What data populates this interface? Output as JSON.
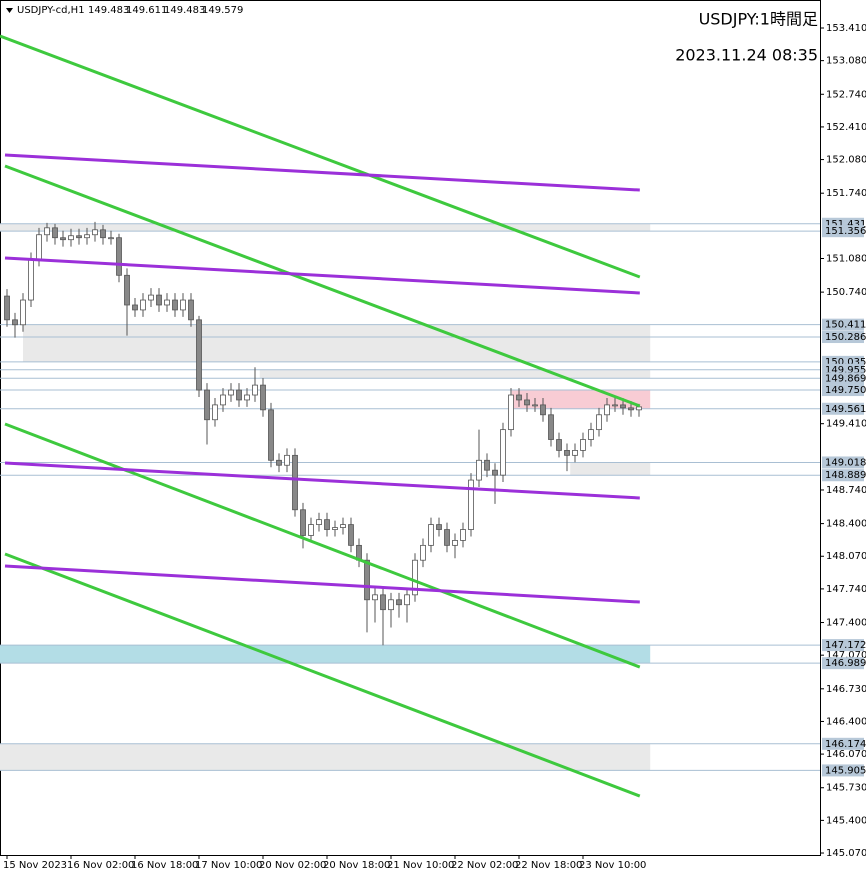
{
  "chart_data": {
    "type": "candlestick",
    "symbol": "USDJPY-cd,H1",
    "header_values": [
      149.483,
      149.611,
      149.483,
      149.579
    ],
    "title": "USDJPY:1時間足",
    "subtitle": "2023.11.24 08:35",
    "categories": [
      "15 Nov 2023",
      null,
      null,
      null,
      null,
      null,
      null,
      null,
      "16 Nov 02:00",
      null,
      null,
      null,
      null,
      null,
      null,
      null,
      "16 Nov 18:00",
      null,
      null,
      null,
      null,
      null,
      null,
      null,
      "17 Nov 10:00",
      null,
      null,
      null,
      null,
      null,
      null,
      null,
      "20 Nov 02:00",
      null,
      null,
      null,
      null,
      null,
      null,
      null,
      "20 Nov 18:00",
      null,
      null,
      null,
      null,
      null,
      null,
      null,
      "21 Nov 10:00",
      null,
      null,
      null,
      null,
      null,
      null,
      null,
      "22 Nov 02:00",
      null,
      null,
      null,
      null,
      null,
      null,
      null,
      "22 Nov 18:00",
      null,
      null,
      null,
      null,
      null,
      null,
      null,
      "23 Nov 10:00",
      null,
      null,
      null,
      null,
      null,
      null,
      null
    ],
    "open": [
      150.7,
      150.46,
      150.41,
      150.66,
      151.07,
      151.32,
      151.39,
      151.29,
      151.27,
      151.31,
      151.29,
      151.32,
      151.37,
      151.29,
      151.29,
      150.91,
      150.61,
      150.56,
      150.66,
      150.71,
      150.61,
      150.66,
      150.56,
      150.66,
      150.46,
      149.75,
      149.45,
      149.6,
      149.7,
      149.75,
      149.65,
      149.7,
      149.8,
      149.55,
      149.04,
      148.99,
      149.09,
      148.54,
      148.28,
      148.39,
      148.44,
      148.34,
      148.36,
      148.39,
      148.18,
      148.03,
      147.63,
      147.68,
      147.53,
      147.63,
      147.58,
      147.68,
      148.03,
      148.18,
      148.39,
      148.34,
      148.18,
      148.23,
      148.34,
      148.84,
      149.04,
      148.94,
      148.89,
      149.35,
      149.7,
      149.65,
      149.6,
      149.6,
      149.5,
      149.25,
      149.14,
      149.09,
      149.14,
      149.25,
      149.35,
      149.5,
      149.6,
      149.6,
      149.57,
      149.55
    ],
    "high": [
      150.77,
      150.53,
      150.73,
      151.14,
      151.39,
      151.44,
      151.43,
      151.36,
      151.38,
      151.38,
      151.39,
      151.45,
      151.42,
      151.36,
      151.33,
      150.98,
      150.68,
      150.73,
      150.78,
      150.78,
      150.73,
      150.73,
      150.73,
      150.73,
      150.5,
      149.82,
      149.67,
      149.77,
      149.82,
      149.82,
      149.77,
      149.98,
      149.87,
      149.62,
      149.11,
      149.16,
      149.16,
      148.61,
      148.46,
      148.51,
      148.51,
      148.43,
      148.46,
      148.46,
      148.25,
      148.1,
      147.75,
      147.75,
      147.7,
      147.7,
      147.75,
      148.1,
      148.25,
      148.46,
      148.46,
      148.41,
      148.3,
      148.41,
      148.91,
      149.35,
      149.11,
      149.01,
      149.42,
      149.77,
      149.77,
      149.72,
      149.67,
      149.67,
      149.57,
      149.32,
      149.21,
      149.21,
      149.32,
      149.42,
      149.57,
      149.67,
      149.67,
      149.67,
      149.64,
      149.61
    ],
    "low": [
      150.39,
      150.28,
      150.34,
      150.59,
      151.0,
      151.25,
      151.22,
      151.2,
      151.2,
      151.22,
      151.22,
      151.25,
      151.22,
      151.22,
      150.84,
      150.3,
      150.49,
      150.49,
      150.59,
      150.54,
      150.54,
      150.49,
      150.49,
      150.39,
      149.68,
      149.2,
      149.38,
      149.53,
      149.63,
      149.58,
      149.58,
      149.63,
      149.48,
      148.97,
      148.92,
      148.92,
      148.47,
      148.15,
      148.21,
      148.32,
      148.27,
      148.27,
      148.29,
      148.11,
      147.96,
      147.3,
      147.4,
      147.17,
      147.35,
      147.45,
      147.4,
      147.61,
      147.96,
      148.11,
      148.27,
      148.11,
      148.05,
      148.16,
      148.27,
      148.77,
      148.87,
      148.6,
      148.82,
      149.28,
      149.58,
      149.53,
      149.53,
      149.43,
      149.18,
      149.07,
      148.93,
      149.02,
      149.07,
      149.18,
      149.28,
      149.43,
      149.53,
      149.5,
      149.48,
      149.48
    ],
    "close": [
      150.46,
      150.41,
      150.66,
      151.07,
      151.32,
      151.39,
      151.29,
      151.27,
      151.31,
      151.29,
      151.32,
      151.37,
      151.29,
      151.29,
      150.91,
      150.61,
      150.56,
      150.66,
      150.71,
      150.61,
      150.66,
      150.56,
      150.66,
      150.46,
      149.75,
      149.45,
      149.6,
      149.7,
      149.75,
      149.65,
      149.7,
      149.8,
      149.55,
      149.04,
      148.99,
      149.09,
      148.54,
      148.28,
      148.39,
      148.44,
      148.34,
      148.36,
      148.39,
      148.18,
      148.03,
      147.63,
      147.68,
      147.53,
      147.63,
      147.58,
      147.68,
      148.03,
      148.18,
      148.39,
      148.34,
      148.18,
      148.23,
      148.34,
      148.84,
      149.04,
      148.94,
      148.89,
      149.35,
      149.7,
      149.65,
      149.6,
      149.6,
      149.5,
      149.25,
      149.14,
      149.09,
      149.14,
      149.25,
      149.35,
      149.5,
      149.6,
      149.6,
      149.57,
      149.55,
      149.58
    ],
    "xlim": [
      -0.875,
      101.625
    ],
    "ylim": [
      145.05,
      153.693
    ],
    "yticks": [
      {
        "value": 153.41,
        "label": "153.410"
      },
      {
        "value": 153.08,
        "label": "153.080"
      },
      {
        "value": 152.74,
        "label": "152.740"
      },
      {
        "value": 152.41,
        "label": "152.410"
      },
      {
        "value": 152.08,
        "label": "152.080"
      },
      {
        "value": 151.74,
        "label": "151.740"
      },
      {
        "value": 151.08,
        "label": "151.080"
      },
      {
        "value": 150.74,
        "label": "150.740"
      },
      {
        "value": 149.41,
        "label": "149.410"
      },
      {
        "value": 148.74,
        "label": "148.740"
      },
      {
        "value": 148.4,
        "label": "148.400"
      },
      {
        "value": 148.07,
        "label": "148.070"
      },
      {
        "value": 147.74,
        "label": "147.740"
      },
      {
        "value": 147.4,
        "label": "147.400"
      },
      {
        "value": 147.07,
        "label": "147.070"
      },
      {
        "value": 146.73,
        "label": "146.730"
      },
      {
        "value": 146.4,
        "label": "146.400"
      },
      {
        "value": 146.07,
        "label": "146.070"
      },
      {
        "value": 145.73,
        "label": "145.730"
      },
      {
        "value": 145.4,
        "label": "145.400"
      },
      {
        "value": 145.07,
        "label": "145.070"
      }
    ],
    "levels": [
      151.431,
      151.356,
      150.411,
      150.286,
      150.035,
      149.955,
      149.869,
      {
        "value": 149.75,
        "label": "149.750"
      },
      149.561,
      149.018,
      148.889,
      147.172,
      146.989,
      146.174,
      145.905
    ],
    "zones": [
      {
        "from": 151.356,
        "to": 151.431,
        "x": [
          -0.875,
          80.4
        ],
        "color": "#e9e9e9"
      },
      {
        "from": 150.035,
        "to": 150.411,
        "x": [
          2,
          80.4
        ],
        "color": "#e9e9e9"
      },
      {
        "from": 149.869,
        "to": 149.955,
        "x": [
          31.6,
          80.4
        ],
        "color": "#e9e9e9"
      },
      {
        "from": 149.561,
        "to": 149.75,
        "x": [
          63.1,
          80.4
        ],
        "color": "#f8ccd4"
      },
      {
        "from": 148.889,
        "to": 149.018,
        "x": [
          70.4,
          80.4
        ],
        "color": "#e9e9e9"
      },
      {
        "from": 146.989,
        "to": 147.172,
        "x": [
          -0.875,
          80.4
        ],
        "color": "#b3dde6"
      },
      {
        "from": 145.905,
        "to": 146.174,
        "x": [
          -0.875,
          80.4
        ],
        "color": "#e9e9e9"
      }
    ],
    "trendlines": [
      {
        "color": "#3ec93e",
        "x": [
          -0.875,
          79.1
        ],
        "y": [
          153.329,
          150.893
        ]
      },
      {
        "color": "#9b30d9",
        "x": [
          -0.25,
          79.1
        ],
        "y": [
          152.126,
          151.772
        ]
      },
      {
        "color": "#3ec93e",
        "x": [
          -0.25,
          79.1
        ],
        "y": [
          152.015,
          149.589
        ]
      },
      {
        "color": "#9b30d9",
        "x": [
          -0.25,
          79.1
        ],
        "y": [
          151.085,
          150.731
        ]
      },
      {
        "color": "#3ec93e",
        "x": [
          -0.25,
          79.1
        ],
        "y": [
          149.407,
          146.95
        ]
      },
      {
        "color": "#9b30d9",
        "x": [
          -0.25,
          79.1
        ],
        "y": [
          149.013,
          148.659
        ]
      },
      {
        "color": "#3ec93e",
        "x": [
          -0.25,
          79.1
        ],
        "y": [
          148.093,
          145.646
        ]
      },
      {
        "color": "#9b30d9",
        "x": [
          -0.25,
          79.1
        ],
        "y": [
          147.971,
          147.607
        ]
      }
    ]
  }
}
